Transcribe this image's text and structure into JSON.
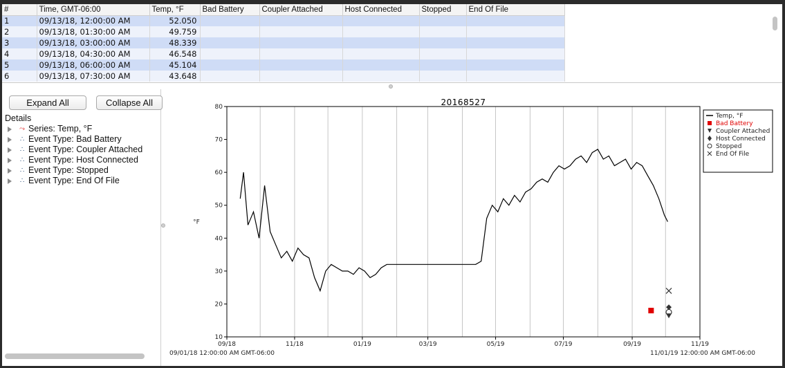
{
  "table": {
    "columns": [
      "#",
      "Time, GMT-06:00",
      "Temp, °F",
      "Bad Battery",
      "Coupler Attached",
      "Host Connected",
      "Stopped",
      "End Of File"
    ],
    "rows": [
      [
        "1",
        "09/13/18, 12:00:00 AM",
        "52.050",
        "",
        "",
        "",
        "",
        ""
      ],
      [
        "2",
        "09/13/18, 01:30:00 AM",
        "49.759",
        "",
        "",
        "",
        "",
        ""
      ],
      [
        "3",
        "09/13/18, 03:00:00 AM",
        "48.339",
        "",
        "",
        "",
        "",
        ""
      ],
      [
        "4",
        "09/13/18, 04:30:00 AM",
        "46.548",
        "",
        "",
        "",
        "",
        ""
      ],
      [
        "5",
        "09/13/18, 06:00:00 AM",
        "45.104",
        "",
        "",
        "",
        "",
        ""
      ],
      [
        "6",
        "09/13/18, 07:30:00 AM",
        "43.648",
        "",
        "",
        "",
        "",
        ""
      ]
    ]
  },
  "tree_panel": {
    "expand_all_label": "Expand All",
    "collapse_all_label": "Collapse All",
    "details_label": "Details",
    "items": [
      {
        "label": "Series: Temp, °F",
        "icon": "line-series-icon"
      },
      {
        "label": "Event Type: Bad Battery",
        "icon": "event-type-icon"
      },
      {
        "label": "Event Type: Coupler Attached",
        "icon": "event-type-icon"
      },
      {
        "label": "Event Type: Host Connected",
        "icon": "event-type-icon"
      },
      {
        "label": "Event Type: Stopped",
        "icon": "event-type-icon"
      },
      {
        "label": "Event Type: End Of File",
        "icon": "event-type-icon"
      }
    ]
  },
  "chart_data": {
    "type": "line",
    "title": "20168527",
    "ylabel": "°F",
    "xlabel": "",
    "ylim": [
      10,
      80
    ],
    "yticks": [
      10,
      20,
      30,
      40,
      50,
      60,
      70,
      80
    ],
    "x_range": [
      "09/01/18 12:00:00 AM GMT-06:00",
      "11/01/19 12:00:00 AM GMT-06:00"
    ],
    "xticks": [
      "09/18",
      "11/18",
      "01/19",
      "03/19",
      "05/19",
      "07/19",
      "09/19",
      "11/19"
    ],
    "grid": "vertical",
    "legend_position": "top-right",
    "legend": [
      {
        "name": "Temp, °F",
        "color": "#000000",
        "marker": "line"
      },
      {
        "name": "Bad Battery",
        "color": "#e00000",
        "marker": "square"
      },
      {
        "name": "Coupler Attached",
        "color": "#333333",
        "marker": "triangle-down"
      },
      {
        "name": "Host Connected",
        "color": "#333333",
        "marker": "diamond"
      },
      {
        "name": "Stopped",
        "color": "#333333",
        "marker": "circle-open"
      },
      {
        "name": "End Of File",
        "color": "#333333",
        "marker": "x"
      }
    ],
    "series": [
      {
        "name": "Temp, °F",
        "color": "#000000",
        "x": [
          "2018-09-13",
          "2018-09-16",
          "2018-09-20",
          "2018-09-25",
          "2018-09-30",
          "2018-10-05",
          "2018-10-10",
          "2018-10-15",
          "2018-10-20",
          "2018-10-25",
          "2018-10-30",
          "2018-11-04",
          "2018-11-09",
          "2018-11-14",
          "2018-11-19",
          "2018-11-24",
          "2018-11-29",
          "2018-12-04",
          "2018-12-09",
          "2018-12-14",
          "2018-12-19",
          "2018-12-24",
          "2018-12-29",
          "2019-01-03",
          "2019-01-08",
          "2019-01-13",
          "2019-01-18",
          "2019-01-23",
          "2019-01-28",
          "2019-02-02",
          "2019-02-07",
          "2019-02-12",
          "2019-02-17",
          "2019-02-22",
          "2019-02-27",
          "2019-03-04",
          "2019-03-09",
          "2019-03-14",
          "2019-03-19",
          "2019-03-24",
          "2019-03-29",
          "2019-04-03",
          "2019-04-08",
          "2019-04-13",
          "2019-04-18",
          "2019-04-23",
          "2019-04-28",
          "2019-05-03",
          "2019-05-08",
          "2019-05-13",
          "2019-05-18",
          "2019-05-23",
          "2019-05-28",
          "2019-06-02",
          "2019-06-07",
          "2019-06-12",
          "2019-06-17",
          "2019-06-22",
          "2019-06-27",
          "2019-07-02",
          "2019-07-07",
          "2019-07-12",
          "2019-07-17",
          "2019-07-22",
          "2019-07-27",
          "2019-08-01",
          "2019-08-06",
          "2019-08-11",
          "2019-08-16",
          "2019-08-21",
          "2019-08-26",
          "2019-08-31",
          "2019-09-05",
          "2019-09-10",
          "2019-09-15",
          "2019-09-20",
          "2019-09-25",
          "2019-09-30",
          "2019-10-03"
        ],
        "y": [
          52,
          60,
          44,
          48,
          40,
          56,
          42,
          38,
          34,
          36,
          33,
          37,
          35,
          34,
          28,
          24,
          30,
          32,
          31,
          30,
          30,
          29,
          31,
          30,
          28,
          29,
          31,
          32,
          32,
          32,
          32,
          32,
          32,
          32,
          32,
          32,
          32,
          32,
          32,
          32,
          32,
          32,
          32,
          32,
          33,
          46,
          50,
          48,
          52,
          50,
          53,
          51,
          54,
          55,
          57,
          58,
          57,
          60,
          62,
          61,
          62,
          64,
          65,
          63,
          66,
          67,
          64,
          65,
          62,
          63,
          64,
          61,
          63,
          62,
          59,
          56,
          52,
          47,
          45
        ]
      }
    ],
    "events": [
      {
        "type": "Bad Battery",
        "x": "2019-09-18",
        "y": 18
      },
      {
        "type": "End Of File",
        "x": "2019-10-04",
        "y": 24
      },
      {
        "type": "Host Connected",
        "x": "2019-10-04",
        "y": 19
      },
      {
        "type": "Stopped",
        "x": "2019-10-04",
        "y": 17.5
      },
      {
        "type": "Coupler Attached",
        "x": "2019-10-04",
        "y": 16.5
      }
    ]
  }
}
